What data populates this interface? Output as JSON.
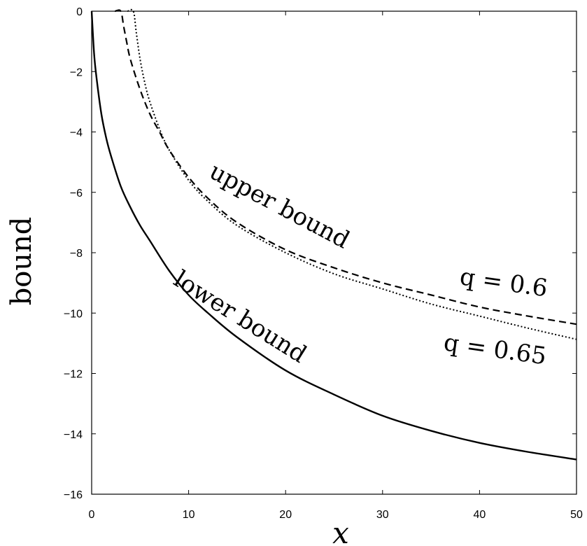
{
  "chart_data": {
    "type": "line",
    "xlabel": "x",
    "ylabel": "bound",
    "xlim": [
      0,
      50
    ],
    "ylim": [
      -16,
      0
    ],
    "xticks": [
      0,
      10,
      20,
      30,
      40,
      50
    ],
    "yticks": [
      0,
      -2,
      -4,
      -6,
      -8,
      -10,
      -12,
      -14,
      -16
    ],
    "xtick_labels": [
      "0",
      "10",
      "20",
      "30",
      "40",
      "50"
    ],
    "ytick_labels": [
      "0",
      "−2",
      "−4",
      "−6",
      "−8",
      "−10",
      "−12",
      "−14",
      "−16"
    ],
    "grid": false,
    "annotations": {
      "upper": "upper bound",
      "lower": "lower bound",
      "q1": "q = 0.6",
      "q2": "q = 0.65"
    },
    "series": [
      {
        "style": "solid",
        "x": [
          0,
          0.25,
          0.5,
          1,
          1.5,
          2,
          3,
          4,
          5,
          6,
          8,
          10,
          12,
          15,
          20,
          25,
          30,
          35,
          40,
          45,
          50
        ],
        "y": [
          0,
          -1.4,
          -2.2,
          -3.4,
          -4.2,
          -4.8,
          -5.8,
          -6.5,
          -7.1,
          -7.6,
          -8.6,
          -9.4,
          -10.0,
          -10.8,
          -11.9,
          -12.7,
          -13.4,
          -13.9,
          -14.3,
          -14.6,
          -14.85
        ]
      },
      {
        "style": "dashed",
        "x": [
          2.4,
          3.0,
          3.3,
          3.6,
          4,
          5,
          6,
          7,
          8,
          10,
          12,
          15,
          20,
          25,
          30,
          35,
          40,
          45,
          50
        ],
        "y": [
          0,
          0,
          -0.5,
          -1.0,
          -1.6,
          -2.6,
          -3.4,
          -4.0,
          -4.6,
          -5.5,
          -6.2,
          -7.0,
          -7.9,
          -8.5,
          -9.0,
          -9.4,
          -9.8,
          -10.1,
          -10.37
        ]
      },
      {
        "style": "dotted",
        "x": [
          3.7,
          4.3,
          4.6,
          5,
          5.5,
          6,
          7,
          8,
          10,
          12,
          15,
          20,
          25,
          30,
          35,
          40,
          45,
          50
        ],
        "y": [
          0,
          0,
          -0.7,
          -1.6,
          -2.4,
          -3.0,
          -3.9,
          -4.6,
          -5.6,
          -6.3,
          -7.1,
          -8.0,
          -8.7,
          -9.2,
          -9.7,
          -10.1,
          -10.5,
          -10.87
        ]
      }
    ]
  }
}
